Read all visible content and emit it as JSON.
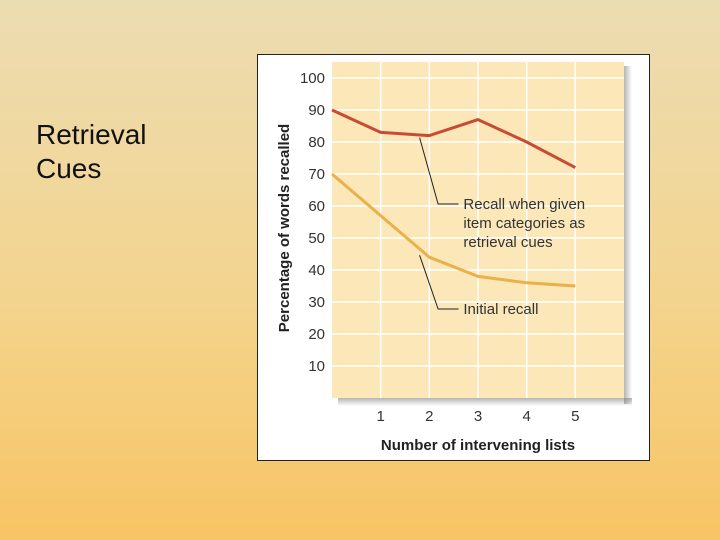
{
  "slide": {
    "title_line1": "Retrieval",
    "title_line2": "Cues"
  },
  "colors": {
    "plot_bg": "#fbe7b8",
    "grid": "#ffffff",
    "series_cued": "#c94b34",
    "series_initial": "#eab04a"
  },
  "chart_data": {
    "type": "line",
    "title": "",
    "xlabel": "Number of intervening lists",
    "ylabel": "Percentage of words recalled",
    "x": [
      0,
      1,
      2,
      3,
      4,
      5
    ],
    "x_ticks": [
      "1",
      "2",
      "3",
      "4",
      "5"
    ],
    "y_ticks": [
      "10",
      "20",
      "30",
      "40",
      "50",
      "60",
      "70",
      "80",
      "90",
      "100"
    ],
    "xlim": [
      0,
      6
    ],
    "ylim": [
      0,
      105
    ],
    "grid": true,
    "series": [
      {
        "name": "Recall when given item categories as retrieval cues",
        "values": [
          90,
          83,
          82,
          87,
          80,
          72
        ]
      },
      {
        "name": "Initial recall",
        "values": [
          70,
          57,
          44,
          38,
          36,
          35
        ]
      }
    ],
    "annotations": {
      "cued": [
        "Recall when given",
        "item categories as",
        "retrieval cues"
      ],
      "initial": [
        "Initial recall"
      ]
    }
  }
}
